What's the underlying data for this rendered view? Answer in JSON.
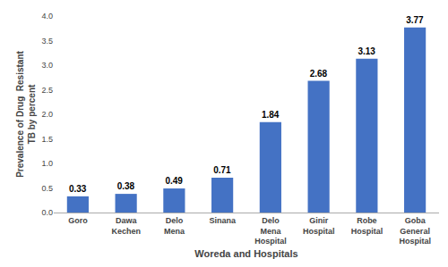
{
  "chart_data": {
    "type": "bar",
    "categories": [
      "Goro",
      "Dawa\nKechen",
      "Delo\nMena",
      "Sinana",
      "Delo\nMena\nHospital",
      "Ginir\nHospital",
      "Robe\nHospital",
      "Goba\nGeneral\nHospital"
    ],
    "values": [
      0.33,
      0.38,
      0.49,
      0.71,
      1.84,
      2.68,
      3.13,
      3.77
    ],
    "color": "#4472C4",
    "xlabel": "Woreda and Hospitals",
    "ylabel": "Prevalence of Drug  Resistant\nTB by percent",
    "ylim": [
      0,
      4
    ],
    "yticks": [
      {
        "value": 0,
        "label": "0.0"
      },
      0.5,
      {
        "value": 1,
        "label": "1.0"
      },
      1.5,
      {
        "value": 2,
        "label": "2.0"
      },
      2.5,
      {
        "value": 3,
        "label": "3.0"
      },
      3.5,
      {
        "value": 4,
        "label": "4.0"
      }
    ],
    "data_labels": true,
    "grid": false
  }
}
